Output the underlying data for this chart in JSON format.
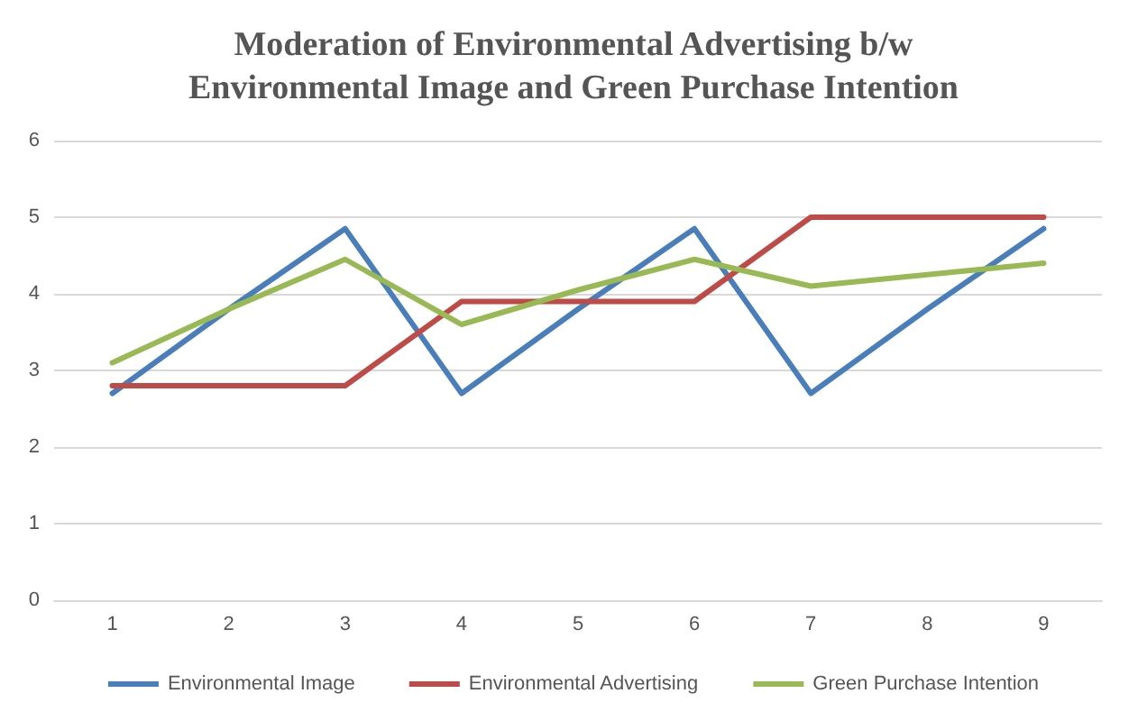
{
  "chart_data": {
    "type": "line",
    "title": "Moderation of Environmental Advertising b/w\nEnvironmental Image and Green Purchase Intention",
    "categories": [
      "1",
      "2",
      "3",
      "4",
      "5",
      "6",
      "7",
      "8",
      "9"
    ],
    "series": [
      {
        "name": "Environmental Image",
        "color": "#4a7ebb",
        "values": [
          2.7,
          3.8,
          4.85,
          2.7,
          3.8,
          4.85,
          2.7,
          3.8,
          4.85
        ]
      },
      {
        "name": "Environmental Advertising",
        "color": "#be4b48",
        "values": [
          2.8,
          2.8,
          2.8,
          3.9,
          3.9,
          3.9,
          5.0,
          5.0,
          5.0
        ]
      },
      {
        "name": "Green Purchase Intention",
        "color": "#98b954",
        "values": [
          3.1,
          3.8,
          4.45,
          3.6,
          4.05,
          4.45,
          4.1,
          4.25,
          4.4
        ]
      }
    ],
    "ylim": [
      0,
      6
    ],
    "yticks": [
      0,
      1,
      2,
      3,
      4,
      5,
      6
    ],
    "grid": "y",
    "legend": "bottom",
    "marker": "none",
    "line_style": "solid"
  }
}
